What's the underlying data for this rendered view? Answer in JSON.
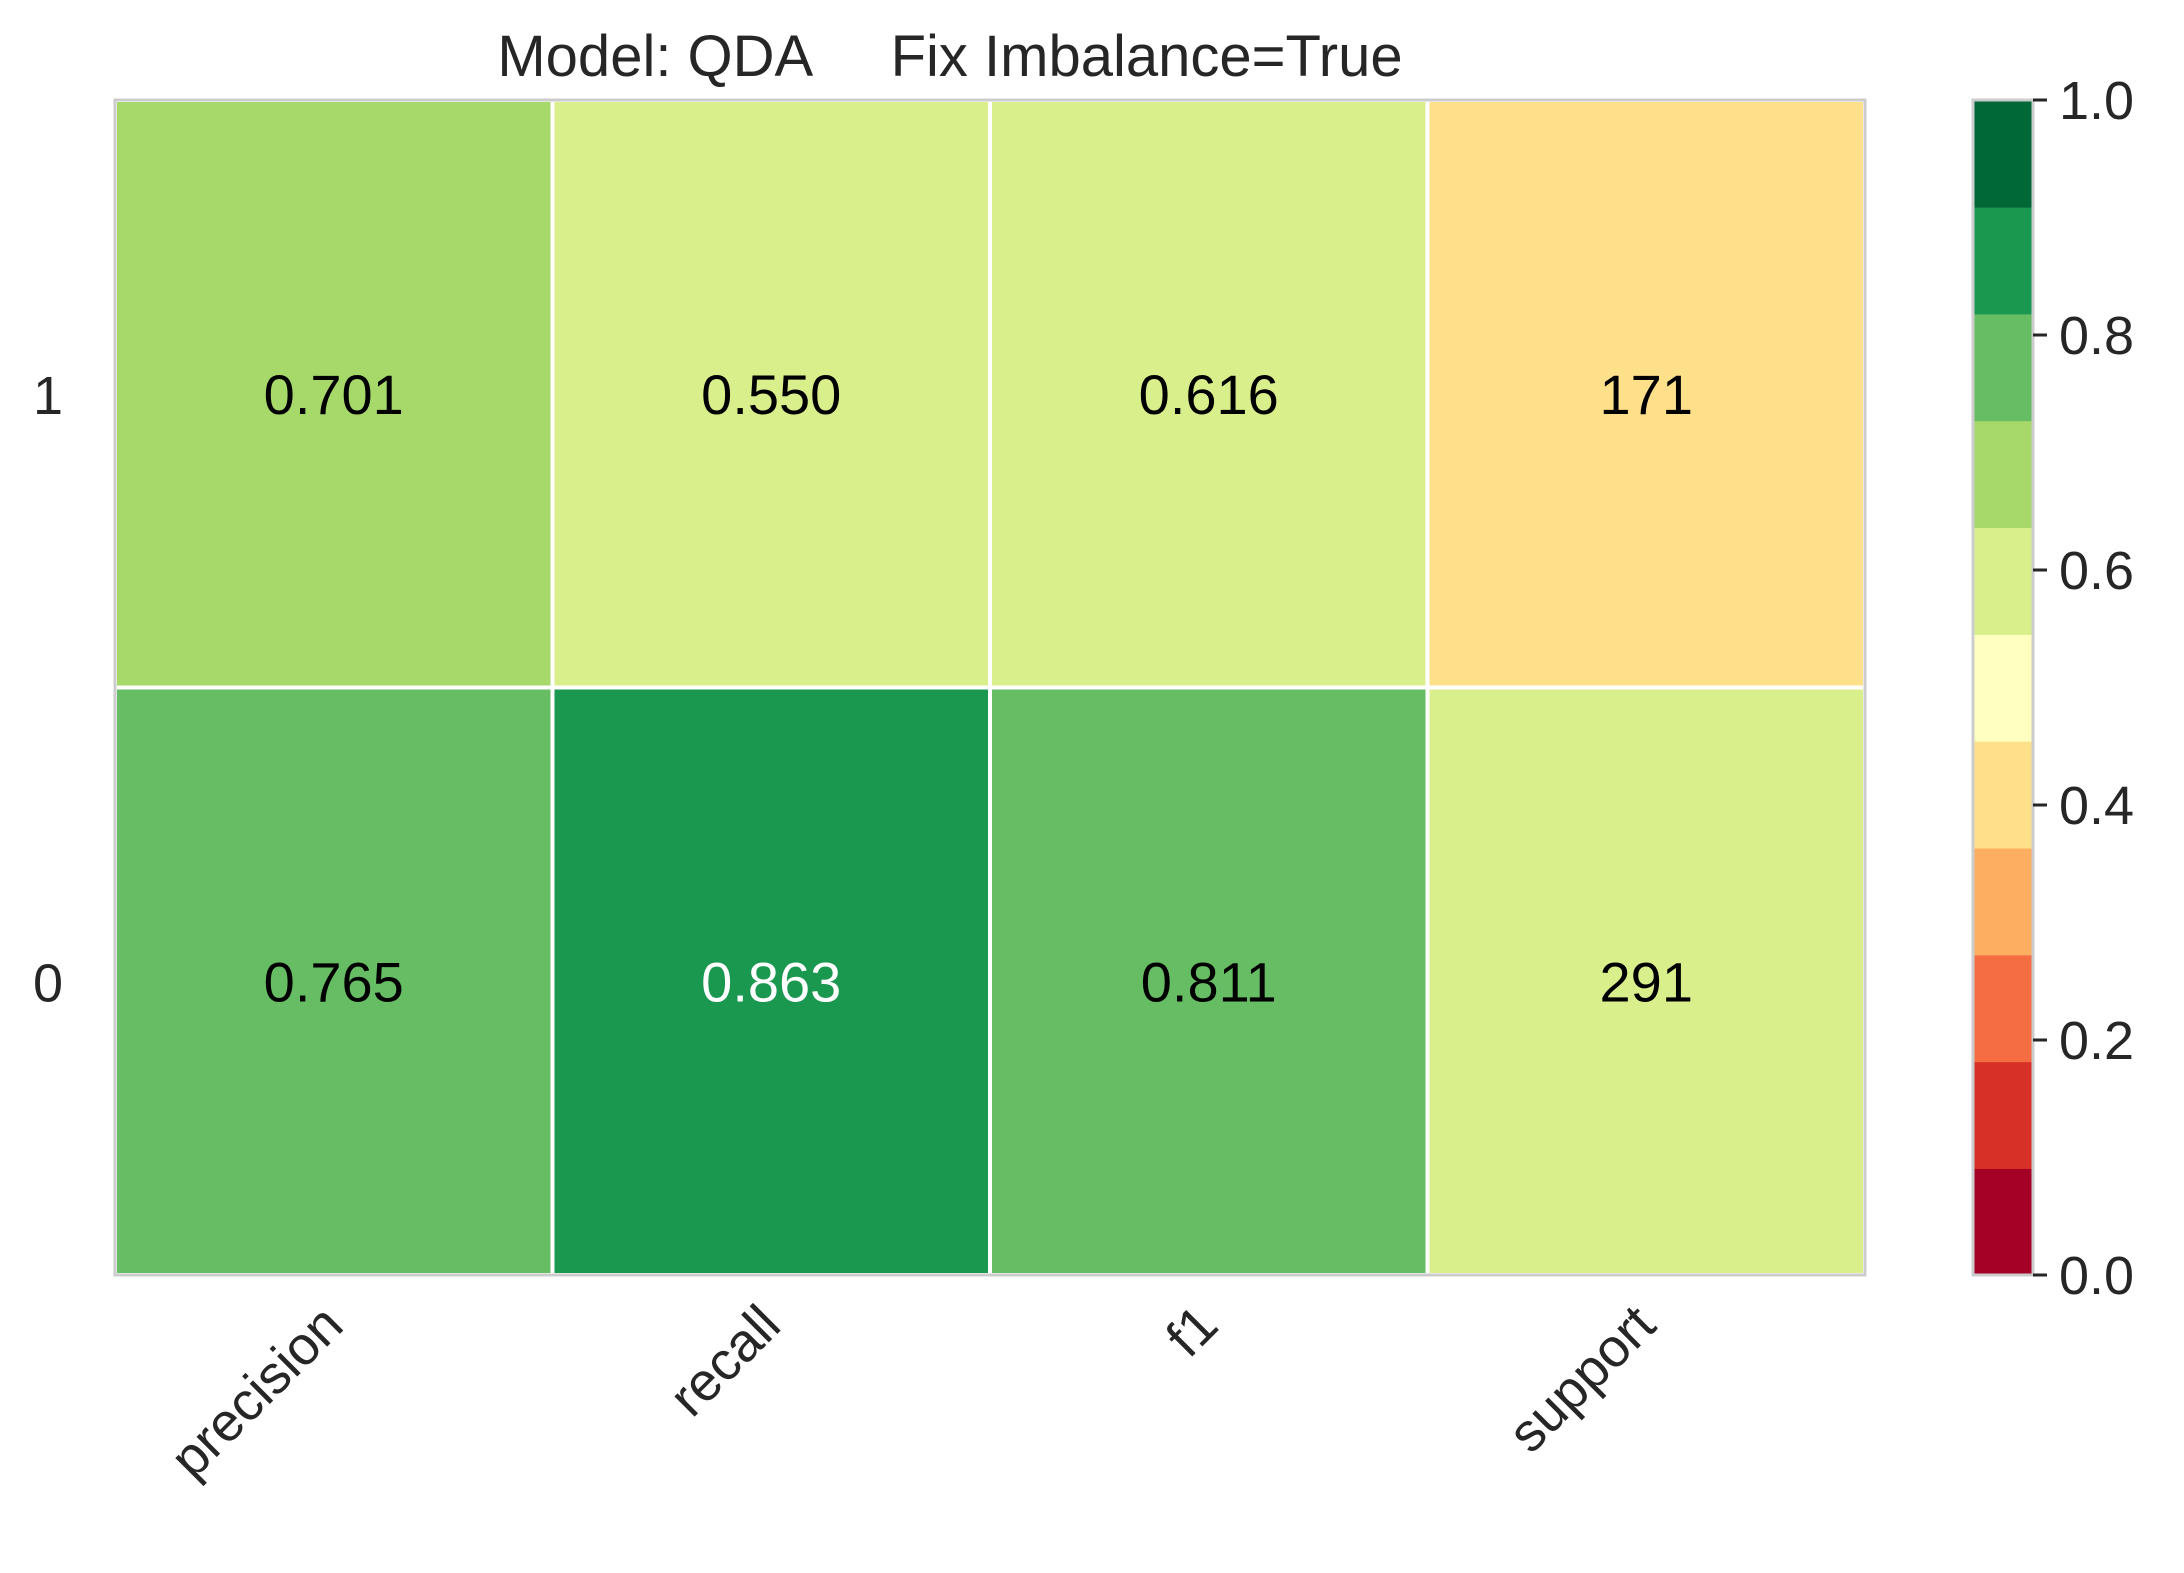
{
  "chart_data": {
    "type": "heatmap",
    "title": "Model: QDA     Fix Imbalance=True",
    "rows": [
      "1",
      "0"
    ],
    "columns": [
      "precision",
      "recall",
      "f1",
      "support"
    ],
    "cells": [
      {
        "row": "1",
        "column": "precision",
        "label": "0.701",
        "color": "#a6d96a",
        "label_color": "#000000"
      },
      {
        "row": "1",
        "column": "recall",
        "label": "0.550",
        "color": "#d9ef8b",
        "label_color": "#000000"
      },
      {
        "row": "1",
        "column": "f1",
        "label": "0.616",
        "color": "#d9ef8b",
        "label_color": "#000000"
      },
      {
        "row": "1",
        "column": "support",
        "label": "171",
        "color": "#fee08b",
        "label_color": "#000000"
      },
      {
        "row": "0",
        "column": "precision",
        "label": "0.765",
        "color": "#66bd63",
        "label_color": "#000000"
      },
      {
        "row": "0",
        "column": "recall",
        "label": "0.863",
        "color": "#1a9850",
        "label_color": "#ffffff"
      },
      {
        "row": "0",
        "column": "f1",
        "label": "0.811",
        "color": "#66bd63",
        "label_color": "#000000"
      },
      {
        "row": "0",
        "column": "support",
        "label": "291",
        "color": "#d9ef8b",
        "label_color": "#000000"
      }
    ],
    "colorbar": {
      "range": [
        0.0,
        1.0
      ],
      "ticks": [
        "0.0",
        "0.2",
        "0.4",
        "0.6",
        "0.8",
        "1.0"
      ],
      "colors": [
        "#a50026",
        "#d73027",
        "#f46d43",
        "#fdae61",
        "#fee08b",
        "#ffffbf",
        "#d9ef8b",
        "#a6d96a",
        "#66bd63",
        "#1a9850",
        "#006837"
      ]
    },
    "grid": true,
    "colormap": "RdYlGn"
  }
}
